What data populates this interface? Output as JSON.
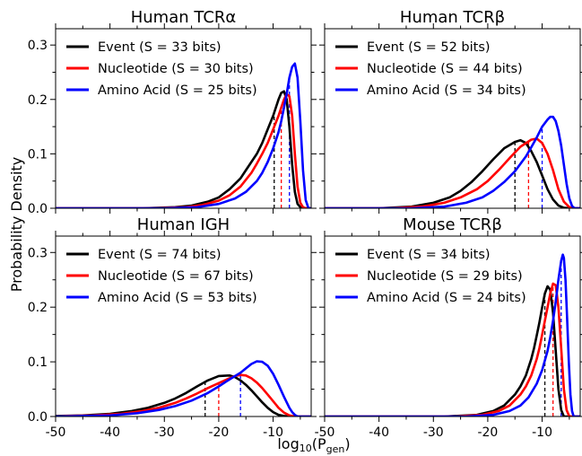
{
  "figure": {
    "ylabel": "Probability Density",
    "xlabel_main": "log",
    "xlabel_base": "10",
    "xlabel_open": "(P",
    "xlabel_sub": "gen",
    "xlabel_close": ")"
  },
  "chart_data": [
    {
      "type": "line",
      "title": "Human TCRα",
      "xlim": [
        -50,
        -3
      ],
      "ylim": [
        0,
        0.33
      ],
      "xticks": [
        "-50",
        "-40",
        "-30",
        "-20",
        "-10"
      ],
      "yticks": [
        "0.0",
        "0.1",
        "0.2",
        "0.3"
      ],
      "legend_position": "top-left",
      "series": [
        {
          "name": "Event (S = 33 bits)",
          "color": "#000000",
          "mean": -9.8,
          "x": [
            -34,
            -28,
            -25,
            -22,
            -20,
            -18,
            -16,
            -15,
            -14,
            -13,
            -12,
            -11,
            -10,
            -9.5,
            -9,
            -8.5,
            -8,
            -7.5,
            -7,
            -6.5,
            -6,
            -5.5,
            -5,
            -4.5
          ],
          "y": [
            0,
            0.002,
            0.005,
            0.012,
            0.02,
            0.035,
            0.055,
            0.07,
            0.085,
            0.1,
            0.12,
            0.145,
            0.17,
            0.185,
            0.2,
            0.212,
            0.215,
            0.2,
            0.15,
            0.08,
            0.03,
            0.008,
            0.002,
            0
          ]
        },
        {
          "name": "Nucleotide (S = 30 bits)",
          "color": "#ff0000",
          "mean": -8.5,
          "x": [
            -32,
            -26,
            -23,
            -20,
            -18,
            -16,
            -14,
            -13,
            -12,
            -11,
            -10,
            -9,
            -8.5,
            -8,
            -7.5,
            -7,
            -6.5,
            -6,
            -5.5,
            -5,
            -4.5,
            -4
          ],
          "y": [
            0,
            0.002,
            0.006,
            0.014,
            0.024,
            0.04,
            0.065,
            0.082,
            0.1,
            0.12,
            0.145,
            0.17,
            0.185,
            0.2,
            0.21,
            0.206,
            0.17,
            0.1,
            0.04,
            0.01,
            0.002,
            0
          ]
        },
        {
          "name": "Amino Acid (S = 25 bits)",
          "color": "#0000ff",
          "mean": -7.0,
          "x": [
            -30,
            -24,
            -20,
            -17,
            -15,
            -13,
            -12,
            -11,
            -10,
            -9,
            -8.5,
            -8,
            -7.5,
            -7,
            -6.5,
            -6,
            -5.5,
            -5,
            -4.5,
            -4,
            -3.5
          ],
          "y": [
            0,
            0.002,
            0.008,
            0.018,
            0.03,
            0.05,
            0.065,
            0.085,
            0.11,
            0.14,
            0.16,
            0.185,
            0.21,
            0.24,
            0.26,
            0.266,
            0.24,
            0.16,
            0.07,
            0.015,
            0
          ]
        }
      ]
    },
    {
      "type": "line",
      "title": "Human TCRβ",
      "xlim": [
        -50,
        -3
      ],
      "ylim": [
        0,
        0.33
      ],
      "xticks": [
        "-50",
        "-40",
        "-30",
        "-20",
        "-10"
      ],
      "yticks": [
        "0.0",
        "0.1",
        "0.2",
        "0.3"
      ],
      "legend_position": "top-left",
      "series": [
        {
          "name": "Event (S = 52 bits)",
          "color": "#000000",
          "mean": -15.0,
          "x": [
            -40,
            -34,
            -30,
            -27,
            -25,
            -23,
            -21,
            -19,
            -17,
            -15,
            -14,
            -13,
            -12,
            -11,
            -10,
            -9,
            -8,
            -7,
            -6,
            -5
          ],
          "y": [
            0,
            0.003,
            0.01,
            0.02,
            0.032,
            0.048,
            0.068,
            0.09,
            0.11,
            0.122,
            0.125,
            0.12,
            0.105,
            0.085,
            0.06,
            0.035,
            0.016,
            0.005,
            0.001,
            0
          ]
        },
        {
          "name": "Nucleotide (S = 44 bits)",
          "color": "#ff0000",
          "mean": -12.5,
          "x": [
            -38,
            -32,
            -28,
            -25,
            -22,
            -20,
            -18,
            -16,
            -14,
            -12,
            -11,
            -10,
            -9,
            -8,
            -7,
            -6,
            -5,
            -4
          ],
          "y": [
            0,
            0.003,
            0.01,
            0.02,
            0.035,
            0.05,
            0.07,
            0.092,
            0.113,
            0.126,
            0.128,
            0.12,
            0.1,
            0.07,
            0.035,
            0.012,
            0.002,
            0
          ]
        },
        {
          "name": "Amino Acid (S = 34 bits)",
          "color": "#0000ff",
          "mean": -10.0,
          "x": [
            -34,
            -28,
            -24,
            -21,
            -19,
            -17,
            -15,
            -13,
            -12,
            -11,
            -10,
            -9,
            -8.5,
            -8,
            -7.5,
            -7,
            -6.5,
            -6,
            -5.5,
            -5,
            -4.5,
            -4
          ],
          "y": [
            0,
            0.003,
            0.01,
            0.02,
            0.032,
            0.048,
            0.068,
            0.095,
            0.112,
            0.13,
            0.15,
            0.163,
            0.168,
            0.168,
            0.16,
            0.142,
            0.115,
            0.08,
            0.045,
            0.018,
            0.004,
            0
          ]
        }
      ]
    },
    {
      "type": "line",
      "title": "Human IGH",
      "xlim": [
        -50,
        -3
      ],
      "ylim": [
        0,
        0.33
      ],
      "xticks": [
        "-50",
        "-40",
        "-30",
        "-20",
        "-10"
      ],
      "yticks": [
        "0.0",
        "0.1",
        "0.2",
        "0.3"
      ],
      "legend_position": "top-left",
      "series": [
        {
          "name": "Event (S = 74 bits)",
          "color": "#000000",
          "mean": -22.5,
          "x": [
            -50,
            -45,
            -40,
            -36,
            -33,
            -30,
            -28,
            -26,
            -24,
            -22,
            -20,
            -18,
            -17,
            -16,
            -15,
            -14,
            -13,
            -12,
            -11,
            -10,
            -9,
            -8,
            -7
          ],
          "y": [
            0.001,
            0.002,
            0.005,
            0.01,
            0.016,
            0.025,
            0.033,
            0.043,
            0.055,
            0.066,
            0.074,
            0.075,
            0.072,
            0.066,
            0.058,
            0.048,
            0.037,
            0.026,
            0.016,
            0.008,
            0.003,
            0.001,
            0
          ]
        },
        {
          "name": "Nucleotide (S = 67 bits)",
          "color": "#ff0000",
          "mean": -20.0,
          "x": [
            -48,
            -43,
            -38,
            -34,
            -31,
            -28,
            -26,
            -24,
            -22,
            -20,
            -18,
            -17,
            -16,
            -15,
            -14,
            -13,
            -12,
            -11,
            -10,
            -9,
            -8,
            -7,
            -6
          ],
          "y": [
            0.001,
            0.002,
            0.005,
            0.01,
            0.016,
            0.025,
            0.033,
            0.042,
            0.052,
            0.061,
            0.07,
            0.074,
            0.076,
            0.075,
            0.07,
            0.062,
            0.052,
            0.04,
            0.028,
            0.016,
            0.007,
            0.002,
            0
          ]
        },
        {
          "name": "Amino Acid (S = 53 bits)",
          "color": "#0000ff",
          "mean": -16.0,
          "x": [
            -45,
            -40,
            -35,
            -31,
            -28,
            -25,
            -22,
            -20,
            -18,
            -16,
            -15,
            -14,
            -13,
            -12,
            -11,
            -10,
            -9,
            -8,
            -7,
            -6.5,
            -6,
            -5.5
          ],
          "y": [
            0.001,
            0.002,
            0.006,
            0.012,
            0.019,
            0.029,
            0.043,
            0.055,
            0.068,
            0.08,
            0.088,
            0.096,
            0.101,
            0.1,
            0.093,
            0.078,
            0.058,
            0.036,
            0.016,
            0.008,
            0.003,
            0
          ]
        }
      ]
    },
    {
      "type": "line",
      "title": "Mouse TCRβ",
      "xlim": [
        -50,
        -3
      ],
      "ylim": [
        0,
        0.33
      ],
      "xticks": [
        "-50",
        "-40",
        "-30",
        "-20",
        "-10"
      ],
      "yticks": [
        "0.0",
        "0.1",
        "0.2",
        "0.3"
      ],
      "legend_position": "top-left",
      "series": [
        {
          "name": "Event (S = 34 bits)",
          "color": "#000000",
          "mean": -9.5,
          "x": [
            -28,
            -22,
            -19,
            -17,
            -15,
            -14,
            -13,
            -12,
            -11.5,
            -11,
            -10.5,
            -10,
            -9.5,
            -9,
            -8.5,
            -8,
            -7.5,
            -7,
            -6.5,
            -6
          ],
          "y": [
            0,
            0.003,
            0.01,
            0.02,
            0.04,
            0.055,
            0.075,
            0.105,
            0.125,
            0.148,
            0.172,
            0.2,
            0.225,
            0.238,
            0.232,
            0.19,
            0.12,
            0.05,
            0.012,
            0
          ]
        },
        {
          "name": "Nucleotide (S = 29 bits)",
          "color": "#ff0000",
          "mean": -8.0,
          "x": [
            -26,
            -21,
            -18,
            -16,
            -14,
            -13,
            -12,
            -11,
            -10.5,
            -10,
            -9.5,
            -9,
            -8.5,
            -8,
            -7.5,
            -7,
            -6.5,
            -6,
            -5.5,
            -5
          ],
          "y": [
            0,
            0.003,
            0.01,
            0.02,
            0.04,
            0.055,
            0.075,
            0.105,
            0.125,
            0.15,
            0.175,
            0.2,
            0.225,
            0.243,
            0.24,
            0.2,
            0.125,
            0.05,
            0.012,
            0
          ]
        },
        {
          "name": "Amino Acid (S = 24 bits)",
          "color": "#0000ff",
          "mean": -6.5,
          "x": [
            -24,
            -19,
            -16,
            -14,
            -12.5,
            -11,
            -10,
            -9,
            -8.5,
            -8,
            -7.5,
            -7,
            -6.5,
            -6.2,
            -6,
            -5.7,
            -5.4,
            -5.1,
            -4.8,
            -4.5,
            -4.2
          ],
          "y": [
            0,
            0.003,
            0.01,
            0.02,
            0.035,
            0.06,
            0.085,
            0.12,
            0.145,
            0.175,
            0.21,
            0.25,
            0.285,
            0.296,
            0.29,
            0.25,
            0.18,
            0.1,
            0.04,
            0.01,
            0
          ]
        }
      ]
    }
  ]
}
